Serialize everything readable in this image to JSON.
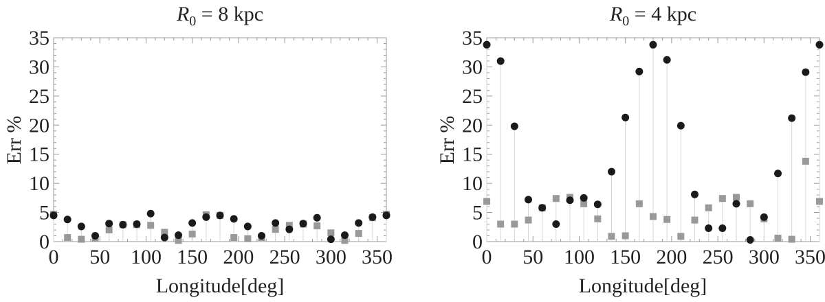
{
  "chart_data": [
    {
      "type": "scatter",
      "title_main": "R",
      "title_sub": "0",
      "title_rest": " = 8 kpc",
      "xlabel": "Longitude[deg]",
      "ylabel": "Err %",
      "xlim": [
        0,
        360
      ],
      "ylim": [
        0,
        35
      ],
      "xticks": [
        0,
        50,
        100,
        150,
        200,
        250,
        300,
        350
      ],
      "yticks": [
        0,
        5,
        10,
        15,
        20,
        25,
        30,
        35
      ],
      "series": [
        {
          "marker": "circle",
          "color": "#1a1a1a",
          "x": [
            0,
            15,
            30,
            45,
            60,
            75,
            90,
            105,
            120,
            135,
            150,
            165,
            180,
            195,
            210,
            225,
            240,
            255,
            270,
            285,
            300,
            315,
            330,
            345,
            360
          ],
          "values": [
            4.5,
            3.8,
            2.6,
            1.0,
            3.1,
            2.9,
            3.0,
            4.8,
            0.7,
            1.1,
            3.2,
            4.2,
            4.5,
            3.9,
            2.6,
            1.0,
            3.2,
            2.1,
            3.1,
            4.1,
            0.4,
            1.1,
            3.2,
            4.2,
            4.5
          ]
        },
        {
          "marker": "square",
          "color": "#999999",
          "x": [
            0,
            15,
            30,
            45,
            60,
            75,
            90,
            105,
            120,
            135,
            150,
            165,
            180,
            195,
            210,
            225,
            240,
            255,
            270,
            285,
            300,
            315,
            330,
            345,
            360
          ],
          "values": [
            4.7,
            0.7,
            0.4,
            0.6,
            2.0,
            2.9,
            2.9,
            2.8,
            1.6,
            0.2,
            1.3,
            4.6,
            4.5,
            0.7,
            0.5,
            0.7,
            2.1,
            2.8,
            3.0,
            2.7,
            1.5,
            0.2,
            1.4,
            4.1,
            4.7
          ]
        }
      ]
    },
    {
      "type": "scatter",
      "title_main": "R",
      "title_sub": "0",
      "title_rest": " = 4 kpc",
      "xlabel": "Longitude[deg]",
      "ylabel": "Err %",
      "xlim": [
        0,
        360
      ],
      "ylim": [
        0,
        35
      ],
      "xticks": [
        0,
        50,
        100,
        150,
        200,
        250,
        300,
        350
      ],
      "yticks": [
        0,
        5,
        10,
        15,
        20,
        25,
        30,
        35
      ],
      "series": [
        {
          "marker": "circle",
          "color": "#1a1a1a",
          "x": [
            0,
            15,
            30,
            45,
            60,
            75,
            90,
            105,
            120,
            135,
            150,
            165,
            180,
            195,
            210,
            225,
            240,
            255,
            270,
            285,
            300,
            315,
            330,
            345,
            360
          ],
          "values": [
            33.8,
            31.0,
            19.8,
            7.2,
            5.8,
            3.0,
            7.1,
            7.5,
            6.4,
            12.0,
            21.3,
            29.2,
            33.8,
            31.2,
            19.9,
            8.1,
            2.3,
            2.3,
            6.5,
            0.3,
            4.2,
            11.7,
            21.2,
            29.1,
            33.8
          ]
        },
        {
          "marker": "square",
          "color": "#999999",
          "x": [
            0,
            15,
            30,
            45,
            60,
            75,
            90,
            105,
            120,
            135,
            150,
            165,
            180,
            195,
            210,
            225,
            240,
            255,
            270,
            285,
            300,
            315,
            330,
            345,
            360
          ],
          "values": [
            6.9,
            3.0,
            3.0,
            3.7,
            5.8,
            7.4,
            7.6,
            6.5,
            3.9,
            0.9,
            1.0,
            6.5,
            4.3,
            3.8,
            0.9,
            3.7,
            5.8,
            7.4,
            7.6,
            6.5,
            3.9,
            0.6,
            0.4,
            13.8,
            6.9
          ]
        }
      ]
    }
  ]
}
